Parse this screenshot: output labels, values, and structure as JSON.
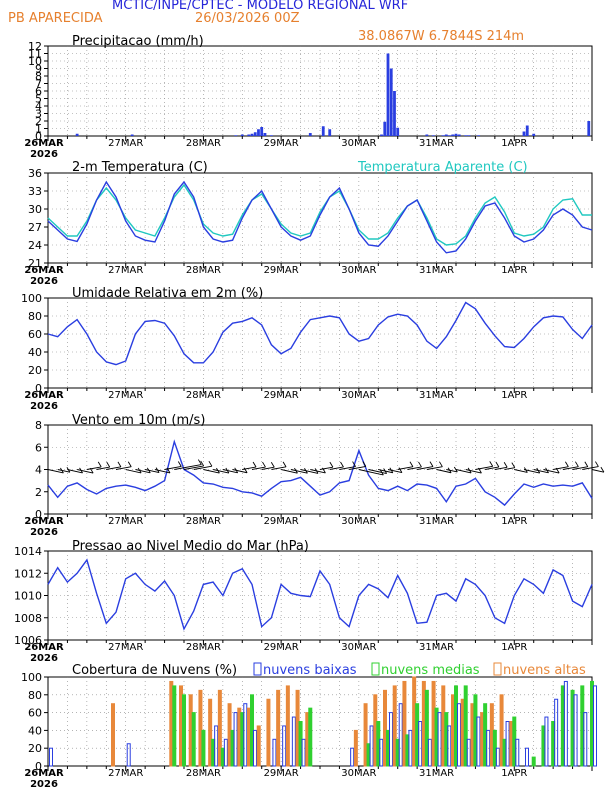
{
  "header": {
    "title": "MCTIC/INPE/CPTEC - MODELO REGIONAL WRF",
    "location": "PB APARECIDA",
    "run_date": "26/03/2026 00Z",
    "coords": "38.0867W 6.7844S 214m"
  },
  "colors": {
    "blue": "#2a3ee0",
    "cyan": "#20c8c0",
    "orange": "#e8883a",
    "green": "#30d030",
    "title_blue": "#2626d9"
  },
  "chart_data": [
    {
      "type": "bar",
      "title": "Precipitacao (mm/h)",
      "ylim": [
        0,
        12
      ],
      "yticks": [
        "0",
        "1",
        "2",
        "3",
        "4",
        "5",
        "6",
        "7",
        "8",
        "9",
        "10",
        "11",
        "12"
      ],
      "x_hours": [
        9,
        26,
        58,
        60,
        62,
        63,
        64,
        65,
        66,
        67,
        69,
        81,
        85,
        87,
        103,
        104,
        105,
        106,
        107,
        108,
        117,
        119,
        122,
        123,
        124,
        125,
        126,
        127,
        129,
        130,
        133,
        147,
        148,
        150,
        167
      ],
      "values": [
        0.3,
        0.2,
        0.1,
        0.2,
        0.2,
        0.3,
        0.5,
        0.9,
        1.2,
        0.4,
        0.1,
        0.4,
        1.3,
        0.9,
        0.2,
        1.9,
        11.0,
        9.0,
        6.0,
        1.1,
        0.2,
        0.1,
        0.1,
        0.2,
        0.1,
        0.2,
        0.3,
        0.2,
        0.1,
        0.1,
        0.1,
        0.6,
        1.4,
        0.3,
        2.0
      ]
    },
    {
      "type": "line",
      "title": "2-m Temperatura (C)",
      "legend": "Temperatura Aparente (C)",
      "ylim": [
        21,
        36
      ],
      "yticks": [
        "21",
        "24",
        "27",
        "30",
        "33",
        "36"
      ],
      "x": [
        0,
        3,
        6,
        9,
        12,
        15,
        18,
        21,
        24,
        27,
        30,
        33,
        36,
        39,
        42,
        45,
        48,
        51,
        54,
        57,
        60,
        63,
        66,
        69,
        72,
        75,
        78,
        81,
        84,
        87,
        90,
        93,
        96,
        99,
        102,
        105,
        108,
        111,
        114,
        117,
        120,
        123,
        126,
        129,
        132,
        135,
        138,
        141,
        144,
        147,
        150,
        153,
        156,
        159,
        162,
        165,
        168
      ],
      "series": [
        {
          "name": "2-m Temperatura",
          "values": [
            28,
            26.5,
            25,
            24.6,
            27.5,
            31.5,
            34.5,
            32,
            28,
            25.5,
            24.8,
            24.5,
            28,
            32.5,
            34.5,
            32,
            27,
            25,
            24.5,
            24.8,
            28.5,
            31.5,
            33,
            30,
            27,
            25.5,
            24.8,
            25.5,
            29,
            32,
            33.5,
            30,
            26,
            24,
            23.8,
            25.5,
            28,
            30.5,
            31.5,
            28,
            24.5,
            22.7,
            23,
            25,
            28,
            30.5,
            31,
            28.5,
            25.5,
            24.5,
            25,
            26.5,
            29,
            30,
            29,
            27,
            26.5
          ]
        },
        {
          "name": "Temperatura Aparente (C)",
          "values": [
            28.5,
            27,
            25.5,
            25.5,
            28,
            31.5,
            33.5,
            31.5,
            28.5,
            26.5,
            26,
            25.5,
            28.5,
            32,
            34,
            31.5,
            27.5,
            26,
            25.5,
            25.8,
            29,
            31.5,
            32.5,
            30,
            27.5,
            26,
            25.5,
            26,
            29.5,
            32,
            33,
            30,
            26.5,
            25,
            25,
            26,
            28.5,
            30.5,
            31.5,
            28.5,
            25,
            24,
            24.2,
            25.5,
            28.5,
            31,
            32,
            29.5,
            26,
            25.5,
            25.8,
            27,
            30,
            31.5,
            31.7,
            29,
            29
          ]
        }
      ]
    },
    {
      "type": "line",
      "title": "Umidade Relativa em 2m (%)",
      "ylim": [
        0,
        100
      ],
      "yticks": [
        "0",
        "20",
        "40",
        "60",
        "80",
        "100"
      ],
      "x": [
        0,
        3,
        6,
        9,
        12,
        15,
        18,
        21,
        24,
        27,
        30,
        33,
        36,
        39,
        42,
        45,
        48,
        51,
        54,
        57,
        60,
        63,
        66,
        69,
        72,
        75,
        78,
        81,
        84,
        87,
        90,
        93,
        96,
        99,
        102,
        105,
        108,
        111,
        114,
        117,
        120,
        123,
        126,
        129,
        132,
        135,
        138,
        141,
        144,
        147,
        150,
        153,
        156,
        159,
        162,
        165,
        168
      ],
      "series": [
        {
          "name": "Umidade Relativa",
          "values": [
            60,
            57,
            68,
            76,
            60,
            40,
            29,
            26,
            30,
            60,
            74,
            75,
            72,
            58,
            38,
            28,
            28,
            40,
            62,
            72,
            74,
            78,
            70,
            48,
            38,
            44,
            62,
            76,
            78,
            80,
            78,
            60,
            52,
            55,
            70,
            79,
            82,
            80,
            70,
            52,
            44,
            57,
            75,
            95,
            88,
            72,
            58,
            46,
            45,
            55,
            68,
            78,
            80,
            79,
            65,
            55,
            70
          ]
        }
      ]
    },
    {
      "type": "line",
      "title": "Vento em 10m (m/s)",
      "ylim": [
        0,
        8
      ],
      "yticks": [
        "0",
        "2",
        "4",
        "6",
        "8"
      ],
      "x": [
        0,
        3,
        6,
        9,
        12,
        15,
        18,
        21,
        24,
        27,
        30,
        33,
        36,
        39,
        42,
        45,
        48,
        51,
        54,
        57,
        60,
        63,
        66,
        69,
        72,
        75,
        78,
        81,
        84,
        87,
        90,
        93,
        96,
        99,
        102,
        105,
        108,
        111,
        114,
        117,
        120,
        123,
        126,
        129,
        132,
        135,
        138,
        141,
        144,
        147,
        150,
        153,
        156,
        159,
        162,
        165,
        168
      ],
      "series": [
        {
          "name": "Vento em 10m",
          "values": [
            2.6,
            1.5,
            2.5,
            2.8,
            2.2,
            1.8,
            2.3,
            2.5,
            2.6,
            2.4,
            2.1,
            2.5,
            3.0,
            6.5,
            4.0,
            3.5,
            2.8,
            2.7,
            2.4,
            2.3,
            2.0,
            1.9,
            1.6,
            2.3,
            2.9,
            3.0,
            3.3,
            2.5,
            1.7,
            2.0,
            2.8,
            3.0,
            5.7,
            3.5,
            2.3,
            2.1,
            2.5,
            2.1,
            2.7,
            2.6,
            2.3,
            1.1,
            2.5,
            2.7,
            3.2,
            2.0,
            1.5,
            0.8,
            1.8,
            2.7,
            2.4,
            2.7,
            2.5,
            2.6,
            2.5,
            2.8,
            1.4
          ]
        }
      ]
    },
    {
      "type": "line",
      "title": "Pressao ao Nivel Medio do Mar (hPa)",
      "ylim": [
        1006,
        1014
      ],
      "yticks": [
        "1006",
        "1008",
        "1010",
        "1012",
        "1014"
      ],
      "x": [
        0,
        3,
        6,
        9,
        12,
        15,
        18,
        21,
        24,
        27,
        30,
        33,
        36,
        39,
        42,
        45,
        48,
        51,
        54,
        57,
        60,
        63,
        66,
        69,
        72,
        75,
        78,
        81,
        84,
        87,
        90,
        93,
        96,
        99,
        102,
        105,
        108,
        111,
        114,
        117,
        120,
        123,
        126,
        129,
        132,
        135,
        138,
        141,
        144,
        147,
        150,
        153,
        156,
        159,
        162,
        165,
        168
      ],
      "series": [
        {
          "name": "Pressao",
          "values": [
            1011.0,
            1012.5,
            1011.2,
            1012.0,
            1013.2,
            1010.2,
            1007.5,
            1008.5,
            1011.5,
            1012.0,
            1011.0,
            1010.4,
            1011.3,
            1010.0,
            1007.0,
            1008.6,
            1011.0,
            1011.2,
            1010.0,
            1012.0,
            1012.4,
            1011.0,
            1007.2,
            1008.0,
            1011.0,
            1010.2,
            1010.0,
            1009.9,
            1012.2,
            1011.0,
            1008.0,
            1007.2,
            1010.0,
            1011.0,
            1010.6,
            1009.8,
            1011.8,
            1010.2,
            1007.5,
            1007.6,
            1010.0,
            1010.2,
            1009.5,
            1011.5,
            1011.0,
            1010.0,
            1008.0,
            1007.5,
            1010.0,
            1011.5,
            1011.0,
            1010.2,
            1012.3,
            1011.8,
            1009.5,
            1009.0,
            1011.0
          ]
        }
      ]
    },
    {
      "type": "bar",
      "title": "Cobertura de Nuvens (%)",
      "ylim": [
        0,
        100
      ],
      "yticks": [
        "0",
        "20",
        "40",
        "60",
        "80",
        "100"
      ],
      "legend": [
        "nuvens baixas",
        "nuvens medias",
        "nuvens altas"
      ],
      "x_hours": [
        0,
        3,
        6,
        9,
        12,
        15,
        18,
        21,
        24,
        27,
        30,
        33,
        36,
        39,
        42,
        45,
        48,
        51,
        54,
        57,
        60,
        63,
        66,
        69,
        72,
        75,
        78,
        81,
        84,
        87,
        90,
        93,
        96,
        99,
        102,
        105,
        108,
        111,
        114,
        117,
        120,
        123,
        126,
        129,
        132,
        135,
        138,
        141,
        144,
        147,
        150,
        153,
        156,
        159,
        162,
        165,
        168
      ],
      "series": [
        {
          "name": "nuvens baixas",
          "values": [
            20,
            0,
            0,
            0,
            0,
            0,
            0,
            0,
            25,
            0,
            0,
            0,
            0,
            0,
            0,
            0,
            0,
            45,
            30,
            60,
            70,
            40,
            0,
            30,
            45,
            55,
            30,
            0,
            0,
            0,
            0,
            20,
            0,
            45,
            30,
            60,
            70,
            40,
            50,
            30,
            60,
            45,
            70,
            30,
            55,
            40,
            20,
            50,
            30,
            20,
            0,
            55,
            75,
            95,
            80,
            60,
            90
          ]
        },
        {
          "name": "nuvens medias",
          "values": [
            0,
            0,
            0,
            0,
            0,
            0,
            0,
            0,
            0,
            0,
            0,
            0,
            0,
            90,
            80,
            60,
            40,
            30,
            20,
            40,
            60,
            80,
            0,
            0,
            0,
            0,
            50,
            65,
            0,
            0,
            0,
            0,
            0,
            25,
            50,
            40,
            30,
            35,
            70,
            85,
            65,
            60,
            90,
            90,
            80,
            70,
            40,
            30,
            55,
            0,
            10,
            45,
            50,
            90,
            85,
            90,
            95
          ]
        },
        {
          "name": "nuvens altas",
          "values": [
            0,
            0,
            0,
            0,
            0,
            0,
            0,
            70,
            0,
            0,
            0,
            0,
            0,
            95,
            90,
            80,
            85,
            75,
            85,
            70,
            65,
            65,
            45,
            75,
            85,
            90,
            85,
            60,
            0,
            0,
            0,
            0,
            40,
            70,
            80,
            85,
            90,
            95,
            100,
            95,
            95,
            90,
            80,
            75,
            70,
            60,
            70,
            80,
            50,
            0,
            0,
            0,
            0,
            0,
            0,
            0,
            0
          ]
        }
      ]
    }
  ],
  "x_axis": {
    "first_label": "26MAR",
    "year": "2026",
    "labels": [
      "27MAR",
      "28MAR",
      "29MAR",
      "30MAR",
      "31MAR",
      "1APR"
    ],
    "label_hours": [
      24,
      48,
      72,
      96,
      120,
      144
    ]
  }
}
